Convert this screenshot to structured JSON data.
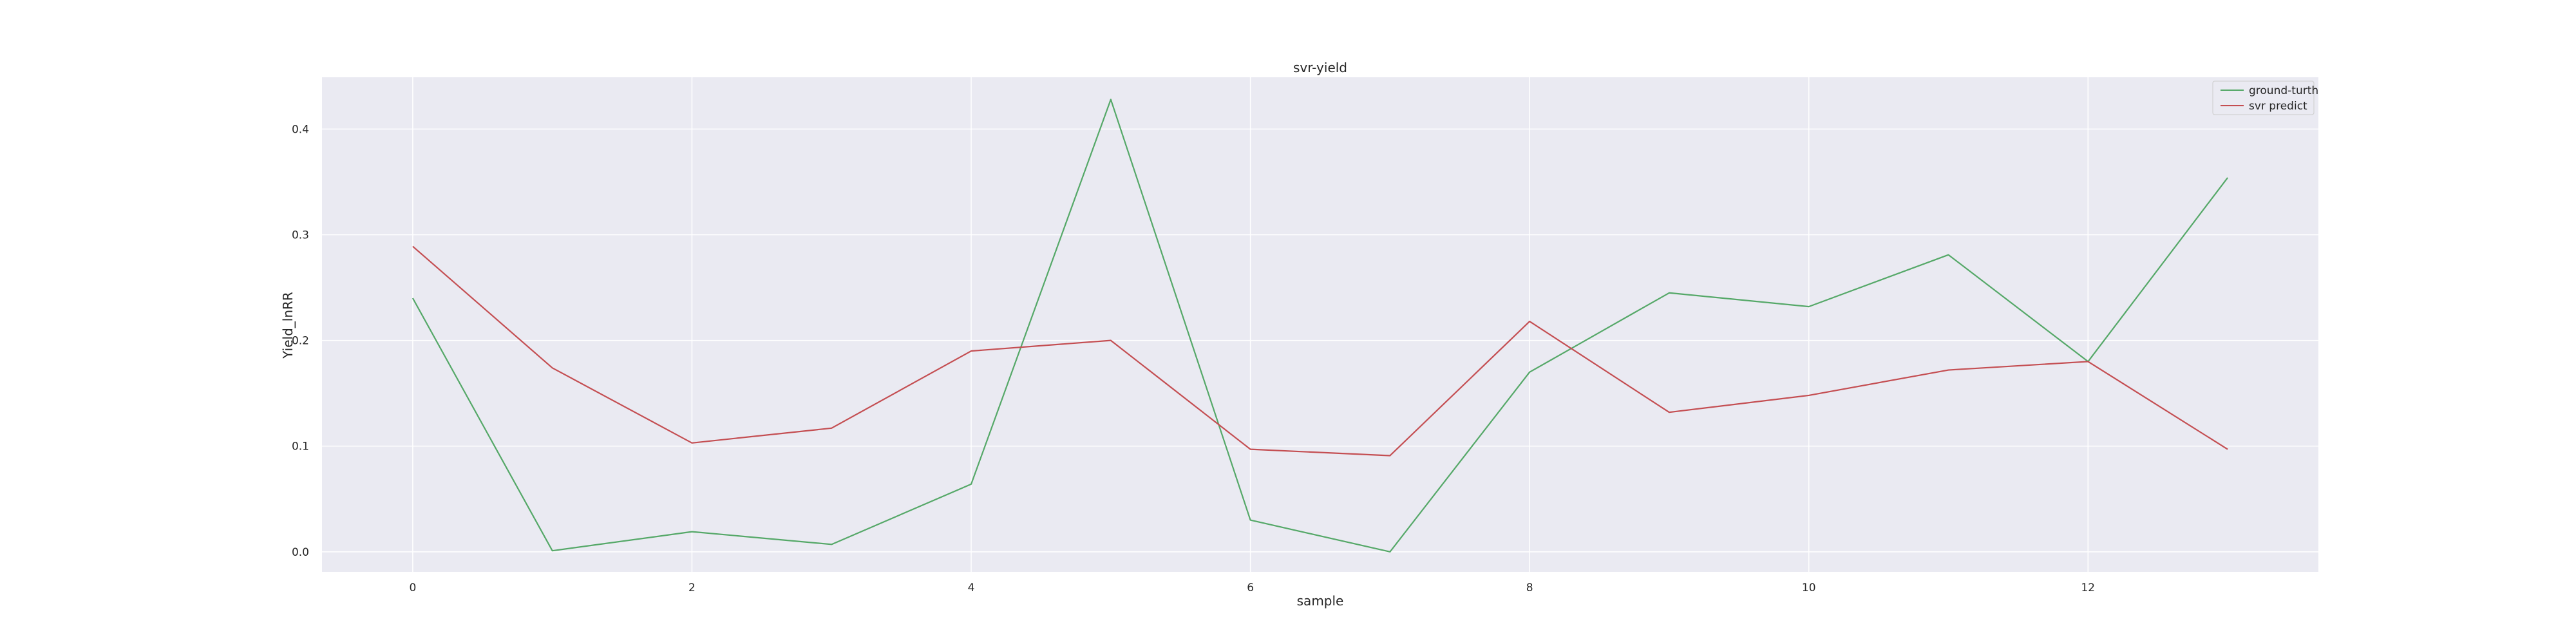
{
  "chart_data": {
    "type": "line",
    "title": "svr-yield",
    "xlabel": "sample",
    "ylabel": "Yield_lnRR",
    "x": [
      0,
      1,
      2,
      3,
      4,
      5,
      6,
      7,
      8,
      9,
      10,
      11,
      12,
      13
    ],
    "xlim": [
      -0.65,
      13.65
    ],
    "ylim": [
      -0.019,
      0.449
    ],
    "xticks": [
      "0",
      "2",
      "4",
      "6",
      "8",
      "10",
      "12"
    ],
    "yticks": [
      "0.0",
      "0.1",
      "0.2",
      "0.3",
      "0.4"
    ],
    "grid": true,
    "legend_position": "top-right",
    "series": [
      {
        "name": "ground-turth",
        "color": "#55a868",
        "values": [
          0.24,
          0.001,
          0.019,
          0.007,
          0.064,
          0.428,
          0.03,
          0.0,
          0.17,
          0.245,
          0.232,
          0.281,
          0.18,
          0.354
        ]
      },
      {
        "name": "svr predict",
        "color": "#c44e52",
        "values": [
          0.289,
          0.174,
          0.103,
          0.117,
          0.19,
          0.2,
          0.097,
          0.091,
          0.218,
          0.132,
          0.148,
          0.172,
          0.18,
          0.097
        ]
      }
    ]
  },
  "colors": {
    "plot_background": "#eaeaf2",
    "grid": "#ffffff"
  }
}
